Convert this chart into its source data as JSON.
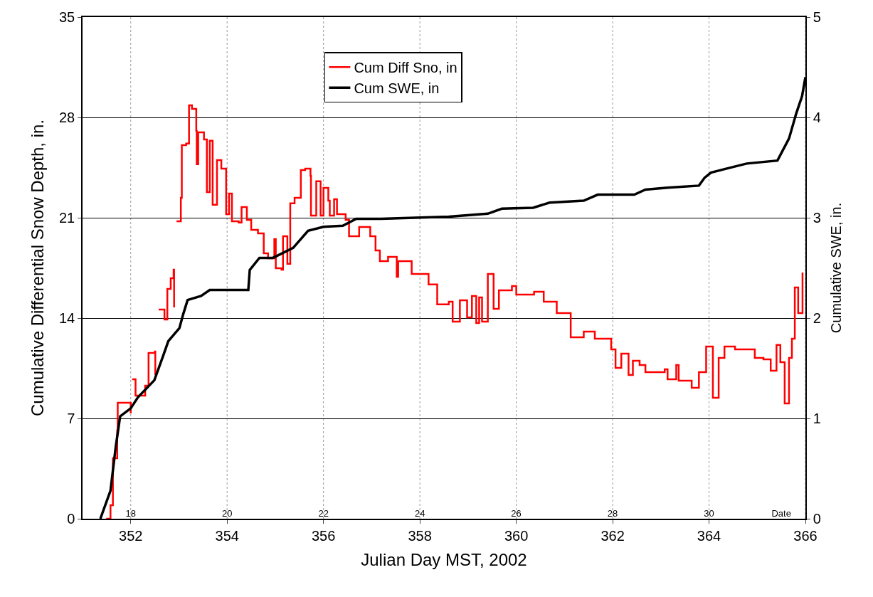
{
  "chart_data": {
    "type": "line",
    "xlabel": "Julian Day MST, 2002",
    "ylabel": "Cumulative Differential Snow Depth, in.",
    "y2label": "Cumulative SWE, in.",
    "xlim": [
      351,
      366
    ],
    "xticks": [
      352,
      354,
      356,
      358,
      360,
      362,
      364,
      366
    ],
    "ylim": [
      0,
      35
    ],
    "yticks": [
      0,
      7,
      14,
      21,
      28,
      35
    ],
    "y2lim": [
      0,
      5
    ],
    "y2ticks": [
      0,
      1,
      2,
      3,
      4,
      5
    ],
    "grid": true,
    "legend": "top",
    "marker": "none",
    "series": [
      {
        "name": "Cum Diff Sno, in",
        "type": "step",
        "color": "#ff0000",
        "x": [
          351.49,
          351.58,
          351.63,
          351.72,
          351.73,
          351.8,
          352.0,
          352.01,
          352.03,
          352.09,
          352.1,
          352.3,
          352.37,
          352.5,
          352.51,
          352.55,
          352.58,
          352.7,
          352.76,
          352.83,
          352.89,
          352.9,
          352.93,
          352.95,
          353.04,
          353.06,
          353.15,
          353.21,
          353.27,
          353.36,
          353.37,
          353.4,
          353.52,
          353.58,
          353.64,
          353.7,
          353.79,
          353.88,
          353.98,
          354.04,
          354.1,
          354.24,
          354.3,
          354.41,
          354.5,
          354.64,
          354.76,
          354.85,
          354.98,
          355.01,
          355.13,
          355.16,
          355.25,
          355.31,
          355.4,
          355.53,
          355.62,
          355.73,
          355.74,
          355.85,
          355.94,
          356.0,
          356.1,
          356.13,
          356.22,
          356.28,
          356.46,
          356.53,
          356.74,
          356.97,
          357.08,
          357.17,
          357.34,
          357.52,
          357.55,
          357.83,
          358.18,
          358.36,
          358.6,
          358.68,
          358.83,
          358.98,
          359.08,
          359.17,
          359.23,
          359.29,
          359.41,
          359.53,
          359.64,
          359.91,
          360.0,
          360.37,
          360.57,
          360.84,
          361.13,
          361.4,
          361.63,
          361.97,
          362.06,
          362.18,
          362.33,
          362.42,
          362.56,
          362.68,
          363.08,
          363.14,
          363.32,
          363.37,
          363.64,
          363.79,
          363.94,
          364.08,
          364.2,
          364.32,
          364.54,
          364.95,
          365.13,
          365.28,
          365.4,
          365.48,
          365.57,
          365.66,
          365.72,
          365.78,
          365.85,
          365.94
        ],
        "values": [
          0,
          0.94,
          4.22,
          6.16,
          8.09,
          8.09,
          7.35,
          null,
          9.73,
          9.73,
          8.59,
          9.28,
          11.57,
          11.67,
          10.03,
          null,
          14.6,
          13.9,
          16.04,
          16.78,
          17.38,
          14.75,
          null,
          20.75,
          22.39,
          26.07,
          26.17,
          28.85,
          28.6,
          27.06,
          24.73,
          26.96,
          26.46,
          22.79,
          26.37,
          21.9,
          25.02,
          24.43,
          21.25,
          22.69,
          20.75,
          20.66,
          21.75,
          20.85,
          20.16,
          19.91,
          18.52,
          18.17,
          19.51,
          17.48,
          17.38,
          19.71,
          17.78,
          22.0,
          22.39,
          24.33,
          24.43,
          23.93,
          21.15,
          23.54,
          21.15,
          23.09,
          22.19,
          21.15,
          22.29,
          21.25,
          20.85,
          19.71,
          20.36,
          19.71,
          18.72,
          17.97,
          18.27,
          16.88,
          17.97,
          17.08,
          16.34,
          14.95,
          15.14,
          13.75,
          15.24,
          14.05,
          15.54,
          13.65,
          15.44,
          13.75,
          17.08,
          14.65,
          15.94,
          16.24,
          15.64,
          15.84,
          15.14,
          14.35,
          12.66,
          13.06,
          12.56,
          11.82,
          10.53,
          11.52,
          10.03,
          11.02,
          10.72,
          10.23,
          10.43,
          9.73,
          10.72,
          9.63,
          9.14,
          10.23,
          12.02,
          8.44,
          11.22,
          12.02,
          11.82,
          11.22,
          11.12,
          10.33,
          12.12,
          10.92,
          8.04,
          11.22,
          12.56,
          16.14,
          14.35,
          17.18
        ]
      },
      {
        "name": "Cum SWE, in",
        "axis": "y2",
        "color": "#000000",
        "x": [
          351.37,
          351.58,
          351.69,
          351.78,
          352.0,
          352.15,
          352.49,
          352.67,
          352.78,
          353.01,
          353.09,
          353.18,
          353.46,
          353.64,
          354.44,
          354.47,
          354.67,
          354.95,
          355.37,
          355.68,
          356.0,
          356.4,
          356.68,
          357.19,
          358.6,
          359.41,
          359.7,
          360.35,
          360.69,
          361.4,
          361.69,
          362.45,
          362.68,
          363.14,
          363.79,
          363.91,
          364.04,
          364.78,
          365.42,
          365.66,
          365.81,
          365.93,
          366.0
        ],
        "values": [
          0,
          0.28,
          0.72,
          1.02,
          1.1,
          1.21,
          1.38,
          1.62,
          1.77,
          1.9,
          2.04,
          2.18,
          2.22,
          2.28,
          2.28,
          2.48,
          2.6,
          2.6,
          2.7,
          2.87,
          2.91,
          2.92,
          2.99,
          2.99,
          3.01,
          3.04,
          3.09,
          3.1,
          3.15,
          3.17,
          3.23,
          3.23,
          3.28,
          3.3,
          3.32,
          3.4,
          3.45,
          3.54,
          3.57,
          3.79,
          4.04,
          4.21,
          4.4
        ]
      }
    ],
    "x2lim": [
      17,
      32
    ],
    "x2ticks": [
      18,
      20,
      22,
      24,
      26,
      28,
      30,
      {
        "value": 31.5,
        "label": "Date"
      }
    ]
  }
}
